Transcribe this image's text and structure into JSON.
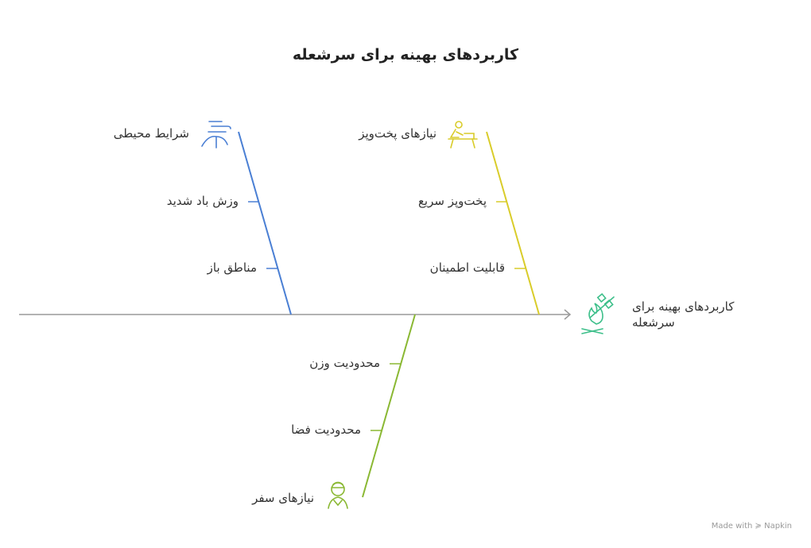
{
  "title": "کاربردهای بهینه برای سرشعله",
  "effect": {
    "label": "کاربردهای بهینه برای سرشعله",
    "icon": "marshmallow-campfire-icon",
    "color": "#3dbf8a"
  },
  "categories": [
    {
      "id": "environment",
      "label": "شرایط محیطی",
      "icon": "wind-icon",
      "color": "#4a7fd4",
      "causes": [
        "وزش باد شدید",
        "مناطق باز"
      ]
    },
    {
      "id": "cooking",
      "label": "نیازهای پخت‌وپز",
      "icon": "cooking-person-icon",
      "color": "#d9cc2a",
      "causes": [
        "پخت‌وپز سریع",
        "قابلیت اطمینان"
      ]
    },
    {
      "id": "travel",
      "label": "نیازهای سفر",
      "icon": "traveler-icon",
      "color": "#8ab833",
      "causes": [
        "محدودیت وزن",
        "محدودیت فضا"
      ]
    }
  ],
  "footer": {
    "text": "Made with",
    "brand": "Napkin"
  }
}
